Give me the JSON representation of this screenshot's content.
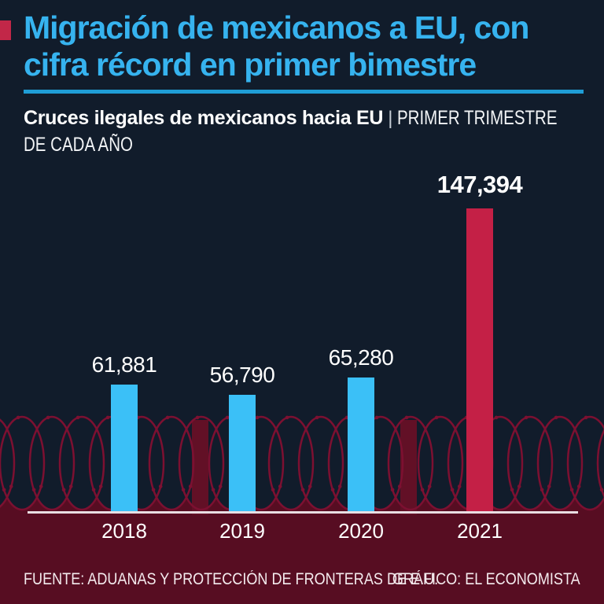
{
  "header": {
    "title_line1": "Migración de mexicanos a EU, con",
    "title_line2": "cifra récord en primer bimestre",
    "subtitle_bold": "Cruces ilegales de mexicanos hacia EU",
    "subtitle_separator": "|",
    "subtitle_light_line1": "PRIMER TRIMESTRE",
    "subtitle_light_line2": "DE CADA AÑO"
  },
  "chart_data": {
    "type": "bar",
    "title": "Cruces ilegales de mexicanos hacia EU | Primer trimestre de cada año",
    "categories": [
      "2018",
      "2019",
      "2020",
      "2021"
    ],
    "values": [
      61881,
      56790,
      65280,
      147394
    ],
    "value_labels": [
      "61,881",
      "56,790",
      "65,280",
      "147,394"
    ],
    "highlight_index": 3,
    "bar_colors": [
      "#3bc0f7",
      "#3bc0f7",
      "#3bc0f7",
      "#c42046"
    ],
    "xlabel": "",
    "ylabel": "",
    "ylim": [
      0,
      147394
    ],
    "grid": false,
    "legend": false
  },
  "footer": {
    "source": "FUENTE: ADUANAS Y PROTECCIÓN DE FRONTERAS DE E.U.",
    "credit": "GRÁFICO: EL ECONOMISTA"
  },
  "colors": {
    "background": "#111c2b",
    "title_cyan": "#36b3ef",
    "underline_cyan": "#1f9dd6",
    "bar_blue": "#3bc0f7",
    "bar_red": "#c42046",
    "accent_red": "#c22748",
    "band_maroon": "#570d22",
    "wire_stroke": "#7c1031",
    "wire_post": "#621026",
    "baseline": "#e9dee3",
    "text_white": "#ffffff"
  }
}
